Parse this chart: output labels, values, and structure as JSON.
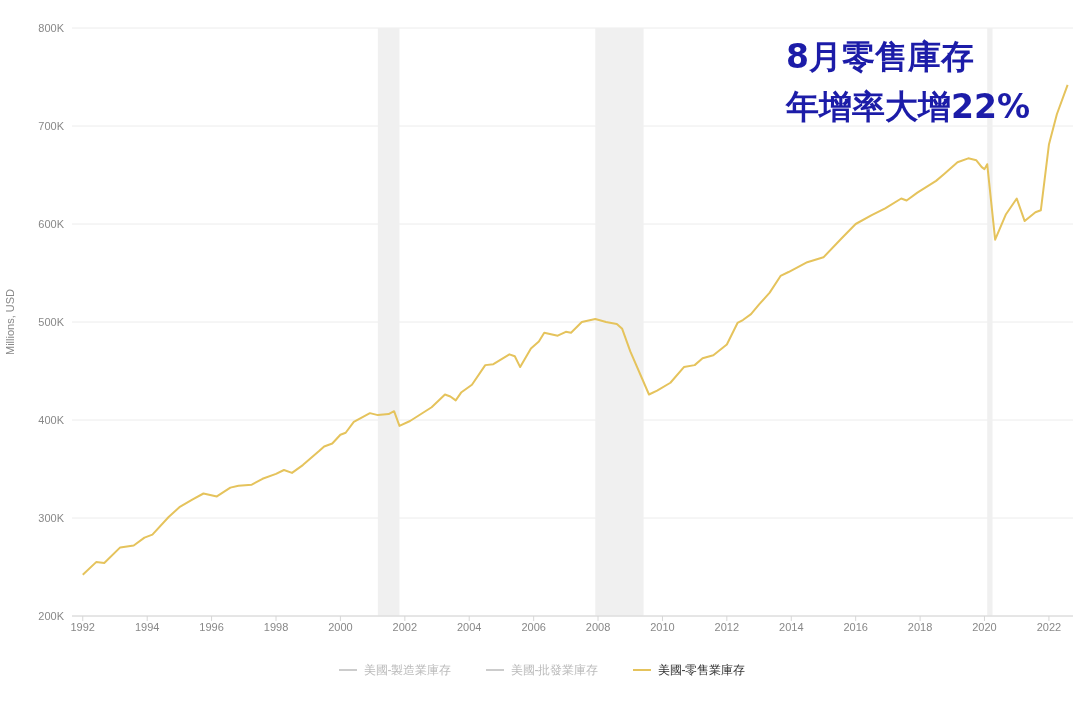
{
  "chart_data": {
    "type": "line",
    "ylabel": "Millions, USD",
    "annotations": [
      "8月零售庫存",
      "年增率大增22%"
    ],
    "x": [
      "1992-01",
      "1992-06",
      "1992-09",
      "1993-03",
      "1993-08",
      "1993-12",
      "1994-03",
      "1994-09",
      "1995-01",
      "1995-06",
      "1995-10",
      "1996-03",
      "1996-08",
      "1996-11",
      "1997-04",
      "1997-08",
      "1998-01",
      "1998-04",
      "1998-07",
      "1998-11",
      "1999-05",
      "1999-07",
      "1999-10",
      "2000-01",
      "2000-03",
      "2000-06",
      "2000-12",
      "2001-03",
      "2001-07",
      "2001-09",
      "2001-11",
      "2002-03",
      "2002-11",
      "2003-04",
      "2003-06",
      "2003-08",
      "2003-10",
      "2004-02",
      "2004-07",
      "2004-10",
      "2005-04",
      "2005-06",
      "2005-08",
      "2005-12",
      "2006-03",
      "2006-05",
      "2006-10",
      "2007-01",
      "2007-03",
      "2007-07",
      "2007-12",
      "2008-04",
      "2008-08",
      "2008-10",
      "2009-01",
      "2009-08",
      "2009-11",
      "2010-04",
      "2010-09",
      "2011-01",
      "2011-04",
      "2011-08",
      "2012-01",
      "2012-05",
      "2012-07",
      "2012-10",
      "2013-01",
      "2013-05",
      "2013-09",
      "2013-12",
      "2014-07",
      "2015-01",
      "2015-08",
      "2016-01",
      "2016-07",
      "2016-12",
      "2017-06",
      "2017-08",
      "2017-12",
      "2018-07",
      "2018-10",
      "2019-03",
      "2019-07",
      "2019-10",
      "2019-12",
      "2020-01",
      "2020-02",
      "2020-05",
      "2020-09",
      "2021-01",
      "2021-04",
      "2021-08",
      "2021-10",
      "2022-01",
      "2022-04",
      "2022-08"
    ],
    "series": [
      {
        "name": "美國-製造業庫存",
        "color": "#cccccc",
        "values": [
          null,
          null,
          null,
          null,
          null,
          null,
          null,
          null,
          null,
          null,
          null,
          null,
          null,
          null,
          null,
          null,
          null,
          null,
          null,
          null,
          null,
          null,
          null,
          null,
          null,
          null,
          null,
          null,
          null,
          null,
          null,
          null,
          null,
          null,
          null,
          null,
          null,
          null,
          null,
          null,
          null,
          null,
          null,
          null,
          null,
          null,
          null,
          null,
          null,
          null,
          null,
          null,
          null,
          null,
          null,
          null,
          null,
          null,
          null,
          null,
          null,
          null,
          null,
          null,
          null,
          null,
          null,
          null,
          null,
          null,
          null,
          null,
          null,
          null,
          null,
          null,
          null,
          null,
          null,
          null,
          null,
          null,
          null,
          null,
          null,
          null,
          null,
          null,
          null,
          null,
          null,
          null,
          null,
          null,
          null,
          null
        ]
      },
      {
        "name": "美國-批發業庫存",
        "color": "#cccccc",
        "values": [
          null,
          null,
          null,
          null,
          null,
          null,
          null,
          null,
          null,
          null,
          null,
          null,
          null,
          null,
          null,
          null,
          null,
          null,
          null,
          null,
          null,
          null,
          null,
          null,
          null,
          null,
          null,
          null,
          null,
          null,
          null,
          null,
          null,
          null,
          null,
          null,
          null,
          null,
          null,
          null,
          null,
          null,
          null,
          null,
          null,
          null,
          null,
          null,
          null,
          null,
          null,
          null,
          null,
          null,
          null,
          null,
          null,
          null,
          null,
          null,
          null,
          null,
          null,
          null,
          null,
          null,
          null,
          null,
          null,
          null,
          null,
          null,
          null,
          null,
          null,
          null,
          null,
          null,
          null,
          null,
          null,
          null,
          null,
          null,
          null,
          null,
          null,
          null,
          null,
          null,
          null,
          null,
          null,
          null,
          null,
          null
        ]
      },
      {
        "name": "美國-零售業庫存",
        "color": "#e5c35c",
        "values": [
          242000,
          255000,
          254000,
          270000,
          272000,
          280000,
          283000,
          301000,
          311000,
          319000,
          325000,
          322000,
          331000,
          333000,
          334000,
          340000,
          345000,
          349000,
          346000,
          354000,
          368000,
          373000,
          376000,
          385000,
          387000,
          398000,
          407000,
          405000,
          406000,
          409000,
          394000,
          399000,
          413000,
          426000,
          424000,
          420000,
          428000,
          436000,
          456000,
          457000,
          467000,
          465000,
          454000,
          473000,
          480000,
          489000,
          486000,
          490000,
          489000,
          500000,
          503000,
          500000,
          498000,
          493000,
          470000,
          426000,
          430000,
          438000,
          454000,
          456000,
          463000,
          466000,
          477000,
          499000,
          502000,
          508000,
          518000,
          530000,
          547000,
          551000,
          561000,
          566000,
          586000,
          600000,
          609000,
          616000,
          626000,
          624000,
          632000,
          644000,
          651000,
          663000,
          667000,
          665000,
          658000,
          656000,
          661000,
          584000,
          610000,
          626000,
          603000,
          612000,
          614000,
          681000,
          712000,
          742000
        ]
      }
    ],
    "xlim": [
      "1991-09",
      "2022-10"
    ],
    "xticks": [
      "1992",
      "1994",
      "1996",
      "1998",
      "2000",
      "2002",
      "2004",
      "2006",
      "2008",
      "2010",
      "2012",
      "2014",
      "2016",
      "2018",
      "2020",
      "2022"
    ],
    "ylim": [
      200000,
      800000
    ],
    "yticks": [
      {
        "value": 200000,
        "label": "200K"
      },
      {
        "value": 300000,
        "label": "300K"
      },
      {
        "value": 400000,
        "label": "400K"
      },
      {
        "value": 500000,
        "label": "500K"
      },
      {
        "value": 600000,
        "label": "600K"
      },
      {
        "value": 700000,
        "label": "700K"
      },
      {
        "value": 800000,
        "label": "800K"
      }
    ],
    "bands": [
      {
        "axis": "x",
        "from": "2001-03",
        "to": "2001-11",
        "color": "#f0f0f0"
      },
      {
        "axis": "x",
        "from": "2007-12",
        "to": "2009-06",
        "color": "#f0f0f0"
      },
      {
        "axis": "x",
        "from": "2020-02",
        "to": "2020-04",
        "color": "#f0f0f0"
      }
    ],
    "grid": "y",
    "legend": "bottom"
  }
}
